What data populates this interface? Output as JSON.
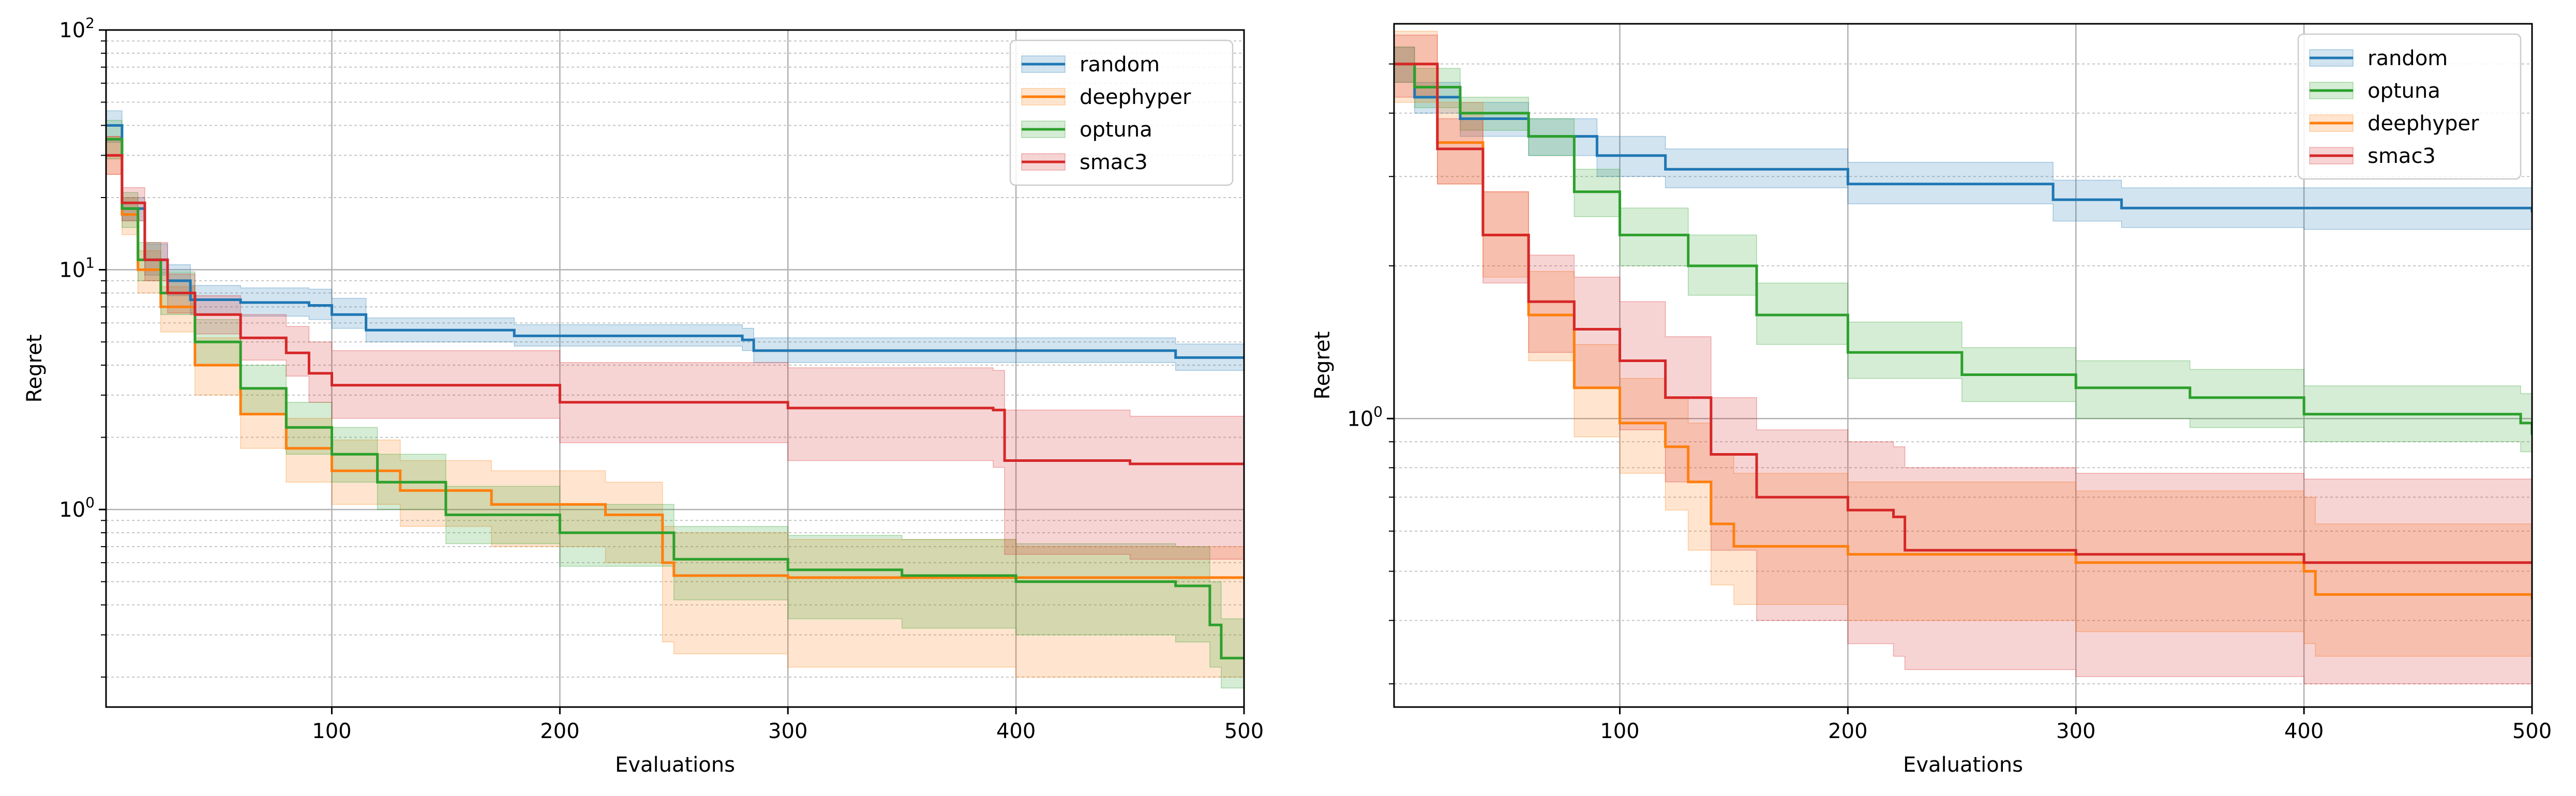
{
  "chart_data": [
    {
      "type": "line",
      "xlabel": "Evaluations",
      "ylabel": "Regret",
      "xlim": [
        1,
        500
      ],
      "ylim": [
        0.15,
        100
      ],
      "yscale": "log",
      "grid": true,
      "legend": "top-right",
      "xticks": [
        {
          "value": 100,
          "label": "100"
        },
        {
          "value": 200,
          "label": "200"
        },
        {
          "value": 300,
          "label": "300"
        },
        {
          "value": 400,
          "label": "400"
        },
        {
          "value": 500,
          "label": "500"
        }
      ],
      "yticks": [
        {
          "value": 1,
          "base": "10",
          "exp": "0"
        },
        {
          "value": 10,
          "base": "10",
          "exp": "1"
        },
        {
          "value": 100,
          "base": "10",
          "exp": "2"
        }
      ],
      "series": [
        {
          "name": "random",
          "color": "#1f77b4",
          "x": [
            1,
            8,
            18,
            28,
            38,
            60,
            90,
            100,
            115,
            180,
            280,
            285,
            380,
            470,
            500
          ],
          "y": [
            40,
            18,
            11,
            9,
            7.5,
            7.3,
            7.1,
            6.5,
            5.6,
            5.3,
            5.1,
            4.6,
            4.6,
            4.3,
            4.3
          ],
          "lower": [
            34,
            16,
            9.5,
            7.8,
            6.5,
            6.4,
            6.2,
            5.7,
            5.0,
            4.8,
            4.6,
            4.1,
            4.1,
            3.8,
            3.8
          ],
          "upper": [
            46,
            20,
            12.8,
            10.5,
            8.6,
            8.4,
            8.3,
            7.6,
            6.3,
            5.9,
            5.7,
            5.2,
            5.2,
            4.9,
            4.9
          ]
        },
        {
          "name": "deephyper",
          "color": "#ff7f0e",
          "x": [
            1,
            8,
            15,
            25,
            40,
            60,
            80,
            100,
            130,
            170,
            220,
            245,
            250,
            300,
            400,
            500
          ],
          "y": [
            30,
            17,
            10,
            7,
            4.0,
            2.5,
            1.8,
            1.45,
            1.2,
            1.05,
            0.95,
            0.6,
            0.53,
            0.52,
            0.52,
            0.52
          ],
          "lower": [
            25,
            14,
            8,
            5.5,
            3.0,
            1.8,
            1.3,
            1.05,
            0.85,
            0.7,
            0.6,
            0.28,
            0.25,
            0.22,
            0.2,
            0.2
          ],
          "upper": [
            36,
            20,
            12,
            8.5,
            5.2,
            3.2,
            2.4,
            1.95,
            1.6,
            1.45,
            1.3,
            0.85,
            0.8,
            0.75,
            0.7,
            0.65
          ]
        },
        {
          "name": "optuna",
          "color": "#2ca02c",
          "x": [
            1,
            8,
            15,
            25,
            40,
            60,
            80,
            100,
            120,
            150,
            200,
            250,
            300,
            350,
            400,
            470,
            485,
            490,
            500
          ],
          "y": [
            35,
            18,
            11,
            8,
            5.0,
            3.2,
            2.2,
            1.7,
            1.3,
            0.95,
            0.8,
            0.62,
            0.56,
            0.53,
            0.5,
            0.48,
            0.33,
            0.24,
            0.24
          ],
          "lower": [
            29,
            15,
            9,
            6.5,
            4.0,
            2.5,
            1.7,
            1.3,
            1.0,
            0.72,
            0.58,
            0.42,
            0.35,
            0.32,
            0.3,
            0.28,
            0.22,
            0.18,
            0.18
          ],
          "upper": [
            42,
            21,
            13,
            9.8,
            6.2,
            4.0,
            2.8,
            2.2,
            1.7,
            1.25,
            1.05,
            0.85,
            0.78,
            0.75,
            0.72,
            0.7,
            0.5,
            0.35,
            0.35
          ]
        },
        {
          "name": "smac3",
          "color": "#d62728",
          "x": [
            1,
            8,
            18,
            28,
            40,
            60,
            80,
            90,
            100,
            200,
            300,
            390,
            395,
            450,
            500
          ],
          "y": [
            30,
            19,
            11,
            8,
            6.5,
            5.2,
            4.5,
            3.7,
            3.3,
            2.8,
            2.65,
            2.6,
            1.6,
            1.55,
            1.55
          ],
          "lower": [
            25,
            16,
            9,
            6.6,
            5.4,
            4.2,
            3.6,
            2.8,
            2.4,
            1.9,
            1.6,
            1.5,
            0.65,
            0.62,
            0.62
          ],
          "upper": [
            36,
            22,
            13,
            9.6,
            7.8,
            6.5,
            5.8,
            5.0,
            4.6,
            4.1,
            3.9,
            3.8,
            2.6,
            2.45,
            2.4
          ]
        }
      ]
    },
    {
      "type": "line",
      "xlabel": "Evaluations",
      "ylabel": "Regret",
      "xlim": [
        1,
        500
      ],
      "ylim": [
        0.27,
        6.0
      ],
      "yscale": "log",
      "grid": true,
      "legend": "top-right",
      "xticks": [
        {
          "value": 100,
          "label": "100"
        },
        {
          "value": 200,
          "label": "200"
        },
        {
          "value": 300,
          "label": "300"
        },
        {
          "value": 400,
          "label": "400"
        },
        {
          "value": 500,
          "label": "500"
        }
      ],
      "yticks": [
        {
          "value": 1,
          "base": "10",
          "exp": "0"
        }
      ],
      "series": [
        {
          "name": "random",
          "color": "#1f77b4",
          "x": [
            1,
            10,
            30,
            60,
            90,
            120,
            200,
            290,
            320,
            400,
            500
          ],
          "y": [
            5.0,
            4.3,
            3.9,
            3.6,
            3.3,
            3.1,
            2.9,
            2.7,
            2.6,
            2.6,
            2.55
          ],
          "lower": [
            4.6,
            4.0,
            3.6,
            3.3,
            3.0,
            2.85,
            2.65,
            2.45,
            2.38,
            2.36,
            2.32
          ],
          "upper": [
            5.4,
            4.6,
            4.2,
            3.9,
            3.6,
            3.4,
            3.2,
            2.95,
            2.85,
            2.85,
            2.8
          ]
        },
        {
          "name": "optuna",
          "color": "#2ca02c",
          "x": [
            1,
            10,
            30,
            60,
            80,
            100,
            130,
            160,
            200,
            250,
            300,
            350,
            400,
            495,
            500
          ],
          "y": [
            5.0,
            4.5,
            4.0,
            3.6,
            2.8,
            2.3,
            2.0,
            1.6,
            1.35,
            1.22,
            1.15,
            1.1,
            1.02,
            0.98,
            0.93
          ],
          "lower": [
            4.6,
            4.1,
            3.7,
            3.3,
            2.5,
            2.0,
            1.75,
            1.4,
            1.2,
            1.08,
            1.0,
            0.96,
            0.9,
            0.86,
            0.82
          ],
          "upper": [
            5.4,
            4.9,
            4.3,
            3.9,
            3.1,
            2.6,
            2.3,
            1.85,
            1.55,
            1.38,
            1.3,
            1.25,
            1.16,
            1.12,
            1.08
          ]
        },
        {
          "name": "deephyper",
          "color": "#ff7f0e",
          "x": [
            1,
            20,
            40,
            60,
            80,
            100,
            120,
            130,
            140,
            150,
            200,
            300,
            400,
            405,
            500
          ],
          "y": [
            5.0,
            3.5,
            2.3,
            1.6,
            1.15,
            0.98,
            0.88,
            0.75,
            0.62,
            0.56,
            0.54,
            0.52,
            0.5,
            0.45,
            0.44
          ],
          "lower": [
            4.2,
            2.9,
            1.9,
            1.3,
            0.92,
            0.78,
            0.66,
            0.55,
            0.47,
            0.43,
            0.4,
            0.38,
            0.36,
            0.34,
            0.33
          ],
          "upper": [
            5.8,
            4.2,
            2.8,
            1.95,
            1.4,
            1.2,
            1.1,
            0.98,
            0.85,
            0.78,
            0.75,
            0.72,
            0.7,
            0.62,
            0.6
          ]
        },
        {
          "name": "smac3",
          "color": "#d62728",
          "x": [
            1,
            20,
            40,
            60,
            80,
            100,
            120,
            140,
            160,
            200,
            220,
            225,
            300,
            400,
            500
          ],
          "y": [
            5.0,
            3.4,
            2.3,
            1.7,
            1.5,
            1.3,
            1.1,
            0.85,
            0.7,
            0.66,
            0.64,
            0.55,
            0.54,
            0.52,
            0.52
          ],
          "lower": [
            4.3,
            2.9,
            1.85,
            1.35,
            1.15,
            0.95,
            0.75,
            0.55,
            0.4,
            0.36,
            0.34,
            0.32,
            0.31,
            0.3,
            0.3
          ],
          "upper": [
            5.7,
            3.9,
            2.8,
            2.1,
            1.9,
            1.7,
            1.45,
            1.1,
            0.95,
            0.9,
            0.88,
            0.8,
            0.78,
            0.76,
            0.75
          ]
        }
      ]
    }
  ]
}
